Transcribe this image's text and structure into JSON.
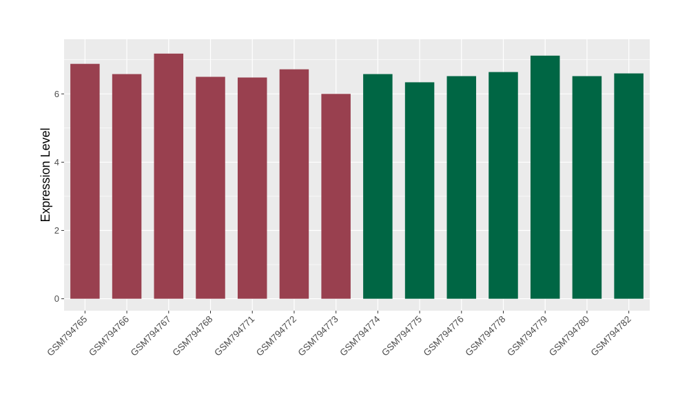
{
  "chart_data": {
    "type": "bar",
    "ylabel": "Expression Level",
    "xlabel": "",
    "title": "",
    "ylim": [
      -0.35,
      7.6
    ],
    "yticks": [
      0,
      2,
      4,
      6
    ],
    "grid": true,
    "categories": [
      "GSM794765",
      "GSM794766",
      "GSM794767",
      "GSM794768",
      "GSM794771",
      "GSM794772",
      "GSM794773",
      "GSM794774",
      "GSM794775",
      "GSM794776",
      "GSM794778",
      "GSM794779",
      "GSM794780",
      "GSM794782"
    ],
    "values": [
      6.88,
      6.58,
      7.18,
      6.5,
      6.48,
      6.72,
      6.0,
      6.58,
      6.34,
      6.52,
      6.64,
      7.12,
      6.52,
      6.6
    ],
    "bar_colors": [
      "#99404f",
      "#99404f",
      "#99404f",
      "#99404f",
      "#99404f",
      "#99404f",
      "#99404f",
      "#006644",
      "#006644",
      "#006644",
      "#006644",
      "#006644",
      "#006644",
      "#006644"
    ],
    "panel_background": "#ebebeb",
    "gridline_color": "#ffffff"
  }
}
